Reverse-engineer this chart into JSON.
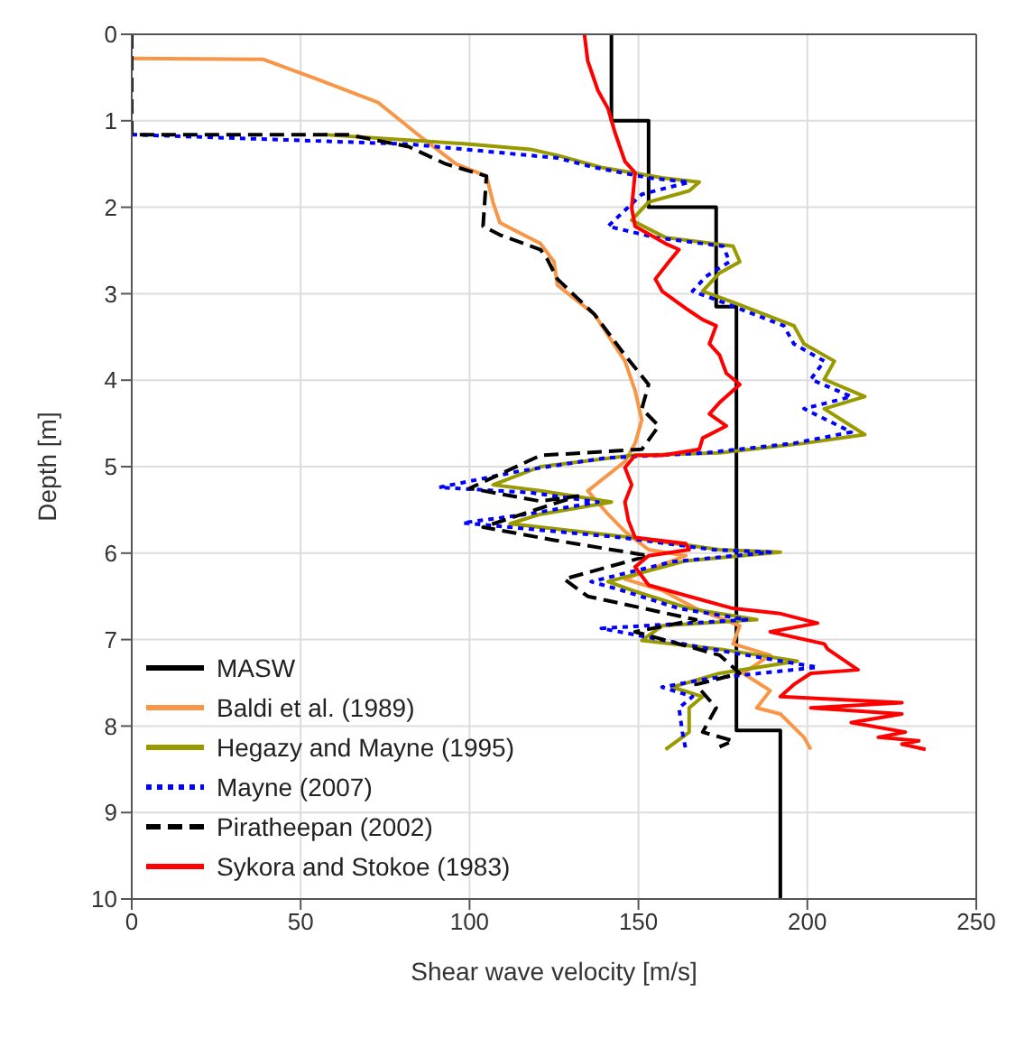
{
  "chart_data": {
    "type": "line",
    "xlabel": "Shear wave velocity [m/s]",
    "ylabel": "Depth [m]",
    "xlim": [
      0,
      250
    ],
    "xticks": [
      0,
      50,
      100,
      150,
      200,
      250
    ],
    "ylim": [
      10,
      0
    ],
    "yticks": [
      0,
      1,
      2,
      3,
      4,
      5,
      6,
      7,
      8,
      9,
      10
    ],
    "grid": true,
    "legend": "bottom left",
    "marker": "none",
    "series": [
      {
        "name": "MASW",
        "color": "#000000",
        "line_style": "solid",
        "x": [
          142,
          142,
          153,
          153,
          173,
          173,
          179,
          179,
          192,
          192
        ],
        "values": [
          0,
          1,
          1,
          2,
          2,
          3.15,
          3.15,
          8.05,
          8.05,
          10
        ]
      },
      {
        "name": "Baldi et al. (1989)",
        "color": "#f79646",
        "line_style": "solid",
        "x": [
          0,
          39,
          55,
          73,
          86,
          96,
          105,
          107,
          109,
          121,
          125,
          126,
          137,
          146,
          149,
          151,
          149,
          146,
          135,
          141,
          146,
          153,
          164,
          146,
          157,
          167,
          180,
          178,
          189,
          181,
          189,
          185,
          192,
          199,
          201
        ],
        "values": [
          0.28,
          0.29,
          0.52,
          0.79,
          1.2,
          1.5,
          1.64,
          1.95,
          2.18,
          2.42,
          2.63,
          2.9,
          3.24,
          3.78,
          4.12,
          4.46,
          4.73,
          4.94,
          5.28,
          5.55,
          5.75,
          5.96,
          6.03,
          6.3,
          6.43,
          6.64,
          6.84,
          7.05,
          7.18,
          7.39,
          7.59,
          7.79,
          7.86,
          8.13,
          8.27
        ]
      },
      {
        "name": "Hegazy and Mayne (1995)",
        "color": "#999900",
        "line_style": "solid",
        "x": [
          57,
          100,
          118,
          126,
          139,
          157,
          168,
          165,
          153,
          148,
          158,
          178,
          180,
          174,
          169,
          178,
          196,
          199,
          208,
          205,
          217,
          205,
          217,
          199,
          174,
          148,
          121,
          107,
          121,
          142,
          121,
          112,
          148,
          174,
          192,
          164,
          141,
          148,
          165,
          185,
          157,
          151,
          174,
          197,
          174,
          160,
          169,
          165,
          165,
          158
        ],
        "values": [
          1.16,
          1.27,
          1.33,
          1.4,
          1.54,
          1.66,
          1.71,
          1.81,
          1.94,
          2.15,
          2.35,
          2.45,
          2.63,
          2.76,
          2.97,
          3.1,
          3.37,
          3.58,
          3.78,
          3.99,
          4.19,
          4.33,
          4.63,
          4.73,
          4.84,
          4.87,
          5.0,
          5.21,
          5.28,
          5.41,
          5.55,
          5.66,
          5.82,
          5.96,
          5.99,
          6.09,
          6.33,
          6.43,
          6.64,
          6.77,
          6.84,
          7.01,
          7.11,
          7.25,
          7.39,
          7.55,
          7.66,
          7.79,
          8.07,
          8.27
        ]
      },
      {
        "name": "Mayne (2007)",
        "color": "#0000ff",
        "line_style": "dotted",
        "x": [
          0,
          82,
          126,
          137,
          153,
          165,
          151,
          141,
          155,
          175,
          177,
          170,
          166,
          175,
          193,
          196,
          205,
          201,
          213,
          199,
          213,
          196,
          170,
          140,
          115,
          91,
          118,
          138,
          117,
          98,
          145,
          172,
          189,
          160,
          136,
          145,
          162,
          182,
          139,
          170,
          203,
          171,
          157,
          166,
          162,
          163,
          164
        ],
        "values": [
          1.16,
          1.27,
          1.43,
          1.54,
          1.66,
          1.71,
          1.85,
          2.22,
          2.35,
          2.45,
          2.63,
          2.8,
          2.97,
          3.1,
          3.37,
          3.58,
          3.78,
          3.99,
          4.19,
          4.33,
          4.6,
          4.73,
          4.84,
          4.9,
          5.05,
          5.24,
          5.3,
          5.41,
          5.55,
          5.65,
          5.82,
          5.96,
          5.99,
          6.1,
          6.33,
          6.43,
          6.64,
          6.77,
          6.87,
          7.1,
          7.32,
          7.45,
          7.55,
          7.66,
          7.79,
          8.07,
          8.27
        ]
      },
      {
        "name": "Piratheepan (2002)",
        "color": "#000000",
        "line_style": "dashed",
        "x": [
          0,
          0,
          64,
          82,
          93,
          105,
          104,
          109,
          121,
          123,
          126,
          137,
          146,
          153,
          151,
          156,
          151,
          121,
          100,
          121,
          132,
          121,
          104,
          125,
          153,
          128,
          135,
          167,
          149,
          174,
          180,
          167,
          173,
          169,
          178,
          174
        ],
        "values": [
          0,
          1.16,
          1.16,
          1.3,
          1.5,
          1.64,
          2.22,
          2.32,
          2.49,
          2.6,
          2.83,
          3.24,
          3.71,
          4.05,
          4.33,
          4.53,
          4.8,
          4.87,
          5.25,
          5.4,
          5.34,
          5.48,
          5.7,
          5.85,
          6.03,
          6.3,
          6.5,
          6.77,
          6.91,
          7.18,
          7.39,
          7.52,
          7.79,
          8.07,
          8.17,
          8.24
        ]
      },
      {
        "name": "Sykora and Stokoe (1983)",
        "color": "#ff0000",
        "line_style": "solid",
        "x": [
          134,
          135,
          138,
          141,
          143,
          146,
          149,
          148,
          149,
          158,
          162,
          159,
          155,
          157,
          164,
          169,
          173,
          171,
          174,
          176,
          180,
          174,
          171,
          176,
          169,
          168,
          157,
          149,
          146,
          148,
          146,
          147,
          149,
          164,
          165,
          153,
          149,
          153,
          165,
          178,
          192,
          203,
          189,
          205,
          206,
          215,
          201,
          196,
          192,
          228,
          201,
          228,
          213,
          229,
          221,
          233,
          228,
          235
        ],
        "values": [
          0,
          0.31,
          0.65,
          0.86,
          1.13,
          1.47,
          1.6,
          2.01,
          2.22,
          2.42,
          2.49,
          2.63,
          2.83,
          2.97,
          3.17,
          3.3,
          3.37,
          3.58,
          3.71,
          3.92,
          4.05,
          4.26,
          4.39,
          4.53,
          4.67,
          4.8,
          4.87,
          4.87,
          5.01,
          5.21,
          5.41,
          5.62,
          5.82,
          5.89,
          5.96,
          6.03,
          6.16,
          6.37,
          6.5,
          6.64,
          6.7,
          6.81,
          6.91,
          7.05,
          7.11,
          7.35,
          7.39,
          7.52,
          7.66,
          7.73,
          7.79,
          7.86,
          7.96,
          8.07,
          8.13,
          8.17,
          8.21,
          8.27
        ]
      }
    ]
  }
}
